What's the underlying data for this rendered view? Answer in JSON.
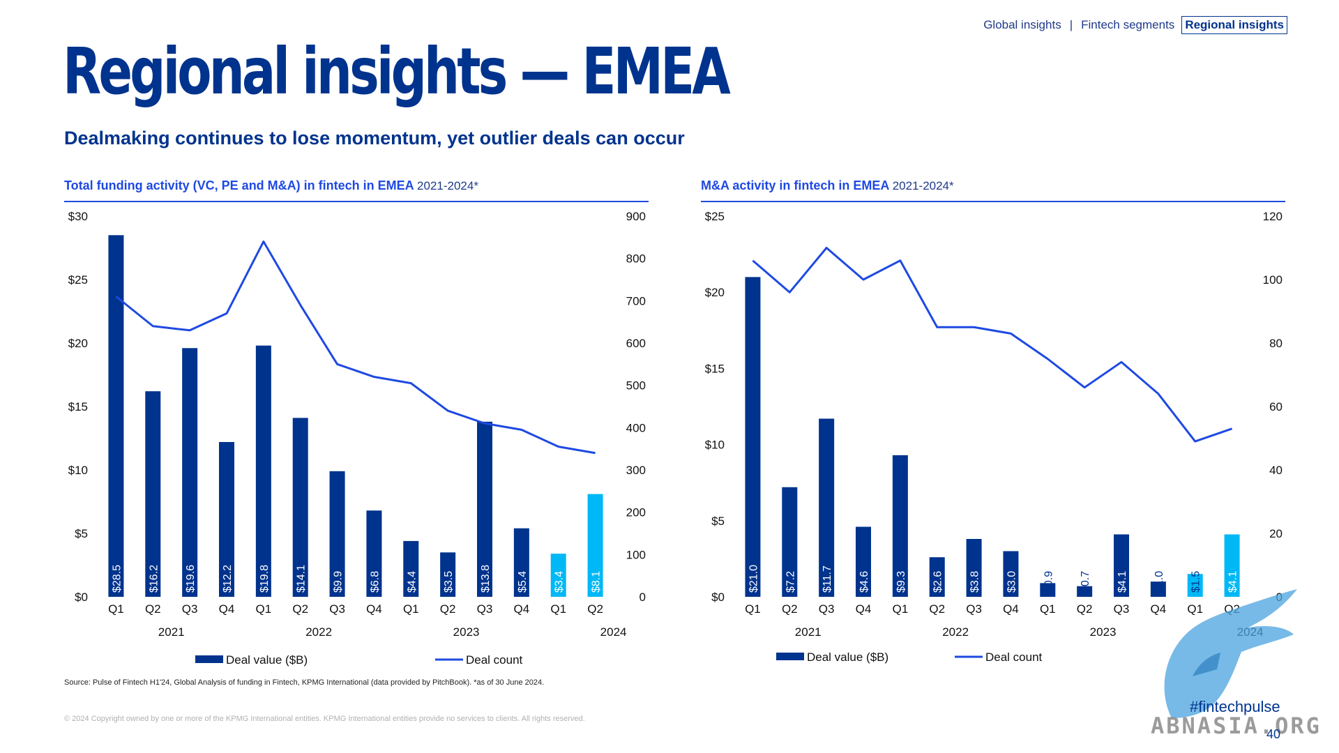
{
  "nav": {
    "items": [
      "Global insights",
      "Fintech segments",
      "Regional insights"
    ],
    "separator": "|",
    "active_index": 2
  },
  "title": "Regional insights — EMEA",
  "subtitle": "Dealmaking continues to lose momentum, yet outlier deals can occur",
  "colors": {
    "dark_blue": "#00338D",
    "light_blue": "#00B8F5",
    "line_blue": "#1E49E2"
  },
  "chart_data": [
    {
      "type": "bar",
      "title": "Total funding activity (VC, PE and M&A) in fintech in EMEA",
      "title_years": "2021-2024*",
      "categories": [
        "Q1",
        "Q2",
        "Q3",
        "Q4",
        "Q1",
        "Q2",
        "Q3",
        "Q4",
        "Q1",
        "Q2",
        "Q3",
        "Q4",
        "Q1",
        "Q2"
      ],
      "years": [
        "2021",
        "2022",
        "2023",
        "2024"
      ],
      "year_groups": [
        4,
        4,
        4,
        2
      ],
      "series": [
        {
          "name": "Deal value ($B)",
          "kind": "bar",
          "axis": "left",
          "values": [
            28.5,
            16.2,
            19.6,
            12.2,
            19.8,
            14.1,
            9.9,
            6.8,
            4.4,
            3.5,
            13.8,
            5.4,
            3.4,
            8.1
          ],
          "labels": [
            "$28.5",
            "$16.2",
            "$19.6",
            "$12.2",
            "$19.8",
            "$14.1",
            "$9.9",
            "$6.8",
            "$4.4",
            "$3.5",
            "$13.8",
            "$5.4",
            "$3.4",
            "$8.1"
          ]
        },
        {
          "name": "Deal count",
          "kind": "line",
          "axis": "right",
          "values": [
            710,
            640,
            630,
            670,
            840,
            690,
            550,
            520,
            505,
            440,
            410,
            395,
            355,
            340
          ]
        }
      ],
      "highlight_last": 2,
      "y_left": {
        "min": 0,
        "max": 30,
        "ticks": [
          0,
          5,
          10,
          15,
          20,
          25,
          30
        ],
        "tick_labels": [
          "$0",
          "$5",
          "$10",
          "$15",
          "$20",
          "$25",
          "$30"
        ]
      },
      "y_right": {
        "min": 0,
        "max": 900,
        "ticks": [
          0,
          100,
          200,
          300,
          400,
          500,
          600,
          700,
          800,
          900
        ],
        "tick_labels": [
          "0",
          "100",
          "200",
          "300",
          "400",
          "500",
          "600",
          "700",
          "800",
          "900"
        ]
      },
      "legend_placement": "bottom",
      "grid": false
    },
    {
      "type": "bar",
      "title": "M&A activity in fintech in EMEA",
      "title_years": "2021-2024*",
      "categories": [
        "Q1",
        "Q2",
        "Q3",
        "Q4",
        "Q1",
        "Q2",
        "Q3",
        "Q4",
        "Q1",
        "Q2",
        "Q3",
        "Q4",
        "Q1",
        "Q2"
      ],
      "years": [
        "2021",
        "2022",
        "2023",
        "2024"
      ],
      "year_groups": [
        4,
        4,
        4,
        2
      ],
      "series": [
        {
          "name": "Deal value ($B)",
          "kind": "bar",
          "axis": "left",
          "values": [
            21.0,
            7.2,
            11.7,
            4.6,
            9.3,
            2.6,
            3.8,
            3.0,
            0.9,
            0.7,
            4.1,
            1.0,
            1.5,
            4.1
          ],
          "labels": [
            "$21.0",
            "$7.2",
            "$11.7",
            "$4.6",
            "$9.3",
            "$2.6",
            "$3.8",
            "$3.0",
            "$0.9",
            "$0.7",
            "$4.1",
            "$1.0",
            "$1.5",
            "$4.1"
          ]
        },
        {
          "name": "Deal count",
          "kind": "line",
          "axis": "right",
          "values": [
            106,
            96,
            110,
            100,
            106,
            85,
            85,
            83,
            75,
            66,
            74,
            64,
            49,
            53
          ]
        }
      ],
      "highlight_last": 2,
      "y_left": {
        "min": 0,
        "max": 25,
        "ticks": [
          0,
          5,
          10,
          15,
          20,
          25
        ],
        "tick_labels": [
          "$0",
          "$5",
          "$10",
          "$15",
          "$20",
          "$25"
        ]
      },
      "y_right": {
        "min": 0,
        "max": 120,
        "ticks": [
          0,
          20,
          40,
          60,
          80,
          100,
          120
        ],
        "tick_labels": [
          "0",
          "20",
          "40",
          "60",
          "80",
          "100",
          "120"
        ]
      },
      "legend_placement": "bottom",
      "grid": false
    }
  ],
  "source": "Source: Pulse of Fintech H1'24, Global Analysis of funding in Fintech, KPMG International (data provided by PitchBook). *as of 30 June 2024.",
  "copyright": "© 2024 Copyright owned by one or more of the KPMG International entities. KPMG International entities provide no services to clients. All rights reserved.",
  "hashtag": "#fintechpulse",
  "page_number": "40",
  "watermark": "ABNASIA.ORG"
}
